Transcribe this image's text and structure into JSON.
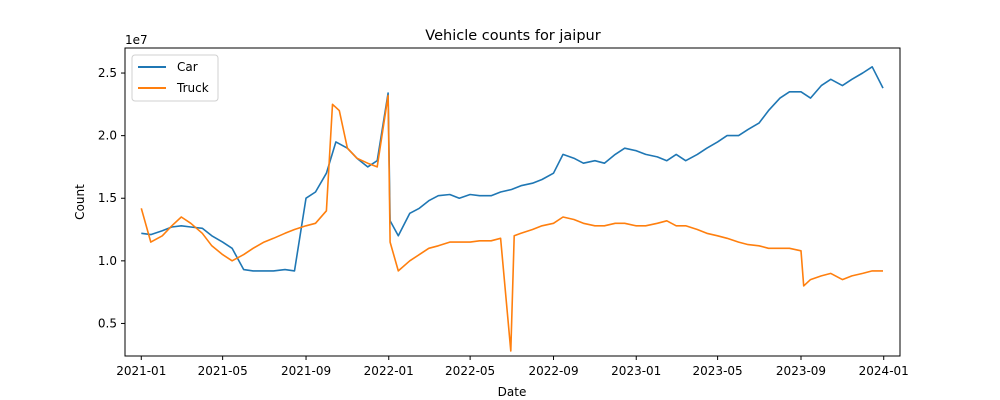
{
  "chart_data": {
    "type": "line",
    "title": "Vehicle counts for jaipur",
    "xlabel": "Date",
    "ylabel": "Count",
    "y_scale_label": "1e7",
    "x_ticks": [
      "2021-01",
      "2021-05",
      "2021-09",
      "2022-01",
      "2022-05",
      "2022-09",
      "2023-01",
      "2023-05",
      "2023-09",
      "2024-01"
    ],
    "y_ticks": [
      0.5,
      1.0,
      1.5,
      2.0,
      2.5
    ],
    "y_tick_labels": [
      "0.5",
      "1.0",
      "1.5",
      "2.0",
      "2.5"
    ],
    "xlim": [
      "2020-12-08",
      "2024-01-25"
    ],
    "ylim": [
      0.24,
      2.7
    ],
    "y_multiplier": 10000000,
    "grid": false,
    "legend_position": "top-left",
    "series": [
      {
        "name": "Car",
        "color": "#1f77b4",
        "points": [
          [
            "2021-01-01",
            1.22
          ],
          [
            "2021-01-15",
            1.21
          ],
          [
            "2021-02-01",
            1.24
          ],
          [
            "2021-02-15",
            1.27
          ],
          [
            "2021-03-01",
            1.28
          ],
          [
            "2021-03-15",
            1.27
          ],
          [
            "2021-04-01",
            1.26
          ],
          [
            "2021-04-15",
            1.2
          ],
          [
            "2021-05-01",
            1.15
          ],
          [
            "2021-05-15",
            1.1
          ],
          [
            "2021-06-01",
            0.93
          ],
          [
            "2021-06-15",
            0.92
          ],
          [
            "2021-07-01",
            0.92
          ],
          [
            "2021-07-15",
            0.92
          ],
          [
            "2021-08-01",
            0.93
          ],
          [
            "2021-08-15",
            0.92
          ],
          [
            "2021-09-01",
            1.5
          ],
          [
            "2021-09-15",
            1.55
          ],
          [
            "2021-10-01",
            1.7
          ],
          [
            "2021-10-15",
            1.95
          ],
          [
            "2021-11-01",
            1.9
          ],
          [
            "2021-11-15",
            1.82
          ],
          [
            "2021-12-01",
            1.75
          ],
          [
            "2021-12-15",
            1.8
          ],
          [
            "2021-12-31",
            2.34
          ],
          [
            "2022-01-03",
            1.32
          ],
          [
            "2022-01-15",
            1.2
          ],
          [
            "2022-02-01",
            1.38
          ],
          [
            "2022-02-15",
            1.42
          ],
          [
            "2022-03-01",
            1.48
          ],
          [
            "2022-03-15",
            1.52
          ],
          [
            "2022-04-01",
            1.53
          ],
          [
            "2022-04-15",
            1.5
          ],
          [
            "2022-05-01",
            1.53
          ],
          [
            "2022-05-15",
            1.52
          ],
          [
            "2022-06-01",
            1.52
          ],
          [
            "2022-06-15",
            1.55
          ],
          [
            "2022-07-01",
            1.57
          ],
          [
            "2022-07-15",
            1.6
          ],
          [
            "2022-08-01",
            1.62
          ],
          [
            "2022-08-15",
            1.65
          ],
          [
            "2022-09-01",
            1.7
          ],
          [
            "2022-09-15",
            1.85
          ],
          [
            "2022-10-01",
            1.82
          ],
          [
            "2022-10-15",
            1.78
          ],
          [
            "2022-11-01",
            1.8
          ],
          [
            "2022-11-15",
            1.78
          ],
          [
            "2022-12-01",
            1.85
          ],
          [
            "2022-12-15",
            1.9
          ],
          [
            "2023-01-01",
            1.88
          ],
          [
            "2023-01-15",
            1.85
          ],
          [
            "2023-02-01",
            1.83
          ],
          [
            "2023-02-15",
            1.8
          ],
          [
            "2023-03-01",
            1.85
          ],
          [
            "2023-03-15",
            1.8
          ],
          [
            "2023-04-01",
            1.85
          ],
          [
            "2023-04-15",
            1.9
          ],
          [
            "2023-05-01",
            1.95
          ],
          [
            "2023-05-15",
            2.0
          ],
          [
            "2023-06-01",
            2.0
          ],
          [
            "2023-06-15",
            2.05
          ],
          [
            "2023-07-01",
            2.1
          ],
          [
            "2023-07-15",
            2.2
          ],
          [
            "2023-08-01",
            2.3
          ],
          [
            "2023-08-15",
            2.35
          ],
          [
            "2023-09-01",
            2.35
          ],
          [
            "2023-09-15",
            2.3
          ],
          [
            "2023-10-01",
            2.4
          ],
          [
            "2023-10-15",
            2.45
          ],
          [
            "2023-11-01",
            2.4
          ],
          [
            "2023-11-15",
            2.45
          ],
          [
            "2023-12-01",
            2.5
          ],
          [
            "2023-12-15",
            2.55
          ],
          [
            "2023-12-31",
            2.38
          ]
        ]
      },
      {
        "name": "Truck",
        "color": "#ff7f0e",
        "points": [
          [
            "2021-01-01",
            1.42
          ],
          [
            "2021-01-15",
            1.15
          ],
          [
            "2021-02-01",
            1.2
          ],
          [
            "2021-02-15",
            1.28
          ],
          [
            "2021-03-01",
            1.35
          ],
          [
            "2021-03-15",
            1.3
          ],
          [
            "2021-04-01",
            1.22
          ],
          [
            "2021-04-15",
            1.12
          ],
          [
            "2021-05-01",
            1.05
          ],
          [
            "2021-05-15",
            1.0
          ],
          [
            "2021-06-01",
            1.05
          ],
          [
            "2021-06-15",
            1.1
          ],
          [
            "2021-07-01",
            1.15
          ],
          [
            "2021-07-15",
            1.18
          ],
          [
            "2021-08-01",
            1.22
          ],
          [
            "2021-08-15",
            1.25
          ],
          [
            "2021-09-01",
            1.28
          ],
          [
            "2021-09-15",
            1.3
          ],
          [
            "2021-10-01",
            1.4
          ],
          [
            "2021-10-10",
            2.25
          ],
          [
            "2021-10-20",
            2.2
          ],
          [
            "2021-11-01",
            1.9
          ],
          [
            "2021-11-15",
            1.82
          ],
          [
            "2021-12-01",
            1.78
          ],
          [
            "2021-12-15",
            1.75
          ],
          [
            "2021-12-31",
            2.32
          ],
          [
            "2022-01-03",
            1.15
          ],
          [
            "2022-01-15",
            0.92
          ],
          [
            "2022-02-01",
            1.0
          ],
          [
            "2022-02-15",
            1.05
          ],
          [
            "2022-03-01",
            1.1
          ],
          [
            "2022-03-15",
            1.12
          ],
          [
            "2022-04-01",
            1.15
          ],
          [
            "2022-04-15",
            1.15
          ],
          [
            "2022-05-01",
            1.15
          ],
          [
            "2022-05-15",
            1.16
          ],
          [
            "2022-06-01",
            1.16
          ],
          [
            "2022-06-15",
            1.18
          ],
          [
            "2022-06-30",
            0.28
          ],
          [
            "2022-07-05",
            1.2
          ],
          [
            "2022-07-15",
            1.22
          ],
          [
            "2022-08-01",
            1.25
          ],
          [
            "2022-08-15",
            1.28
          ],
          [
            "2022-09-01",
            1.3
          ],
          [
            "2022-09-15",
            1.35
          ],
          [
            "2022-10-01",
            1.33
          ],
          [
            "2022-10-15",
            1.3
          ],
          [
            "2022-11-01",
            1.28
          ],
          [
            "2022-11-15",
            1.28
          ],
          [
            "2022-12-01",
            1.3
          ],
          [
            "2022-12-15",
            1.3
          ],
          [
            "2023-01-01",
            1.28
          ],
          [
            "2023-01-15",
            1.28
          ],
          [
            "2023-02-01",
            1.3
          ],
          [
            "2023-02-15",
            1.32
          ],
          [
            "2023-03-01",
            1.28
          ],
          [
            "2023-03-15",
            1.28
          ],
          [
            "2023-04-01",
            1.25
          ],
          [
            "2023-04-15",
            1.22
          ],
          [
            "2023-05-01",
            1.2
          ],
          [
            "2023-05-15",
            1.18
          ],
          [
            "2023-06-01",
            1.15
          ],
          [
            "2023-06-15",
            1.13
          ],
          [
            "2023-07-01",
            1.12
          ],
          [
            "2023-07-15",
            1.1
          ],
          [
            "2023-08-01",
            1.1
          ],
          [
            "2023-08-15",
            1.1
          ],
          [
            "2023-09-01",
            1.08
          ],
          [
            "2023-09-05",
            0.8
          ],
          [
            "2023-09-15",
            0.85
          ],
          [
            "2023-10-01",
            0.88
          ],
          [
            "2023-10-15",
            0.9
          ],
          [
            "2023-11-01",
            0.85
          ],
          [
            "2023-11-15",
            0.88
          ],
          [
            "2023-12-01",
            0.9
          ],
          [
            "2023-12-15",
            0.92
          ],
          [
            "2023-12-31",
            0.92
          ]
        ]
      }
    ]
  }
}
